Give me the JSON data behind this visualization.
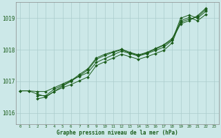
{
  "bg_color": "#cce8e8",
  "grid_color": "#aacccc",
  "line_color": "#1a5c1a",
  "marker_color": "#1a5c1a",
  "xlabel": "Graphe pression niveau de la mer (hPa)",
  "xlabel_color": "#1a5c1a",
  "ylabel_color": "#1a5c1a",
  "yticks": [
    1016,
    1017,
    1018,
    1019
  ],
  "xticks": [
    0,
    1,
    2,
    3,
    4,
    5,
    6,
    7,
    8,
    9,
    10,
    11,
    12,
    13,
    14,
    15,
    16,
    17,
    18,
    19,
    20,
    21,
    22,
    23
  ],
  "xlim": [
    -0.5,
    23.5
  ],
  "ylim": [
    1015.65,
    1019.5
  ],
  "series": [
    {
      "x": [
        0,
        1,
        2,
        3,
        4,
        5,
        6,
        7,
        8,
        9,
        10,
        11,
        12,
        13,
        14,
        15,
        16,
        17,
        18,
        19,
        20,
        21,
        22
      ],
      "y": [
        1016.7,
        1016.7,
        1016.68,
        1016.68,
        1016.8,
        1016.92,
        1017.04,
        1017.16,
        1017.28,
        1017.6,
        1017.72,
        1017.84,
        1017.96,
        1017.88,
        1017.8,
        1017.88,
        1017.98,
        1018.08,
        1018.3,
        1019.0,
        1019.1,
        1019.0,
        1019.22
      ]
    },
    {
      "x": [
        0,
        1,
        2,
        3,
        4,
        5,
        6,
        7,
        8,
        9,
        10,
        11,
        12,
        13,
        14,
        15,
        16,
        17,
        18,
        19,
        20,
        21,
        22
      ],
      "y": [
        1016.7,
        1016.7,
        1016.6,
        1016.52,
        1016.68,
        1016.8,
        1016.9,
        1017.02,
        1017.14,
        1017.5,
        1017.62,
        1017.74,
        1017.86,
        1017.78,
        1017.7,
        1017.78,
        1017.88,
        1017.98,
        1018.22,
        1018.92,
        1019.02,
        1018.92,
        1019.12
      ]
    },
    {
      "x": [
        2,
        3,
        4,
        5,
        6,
        7,
        8,
        9,
        10,
        11,
        12,
        13,
        14,
        15,
        16,
        17,
        18,
        19,
        20,
        21,
        22
      ],
      "y": [
        1016.45,
        1016.5,
        1016.68,
        1016.85,
        1017.0,
        1017.18,
        1017.36,
        1017.7,
        1017.82,
        1017.92,
        1018.0,
        1017.9,
        1017.82,
        1017.9,
        1018.02,
        1018.14,
        1018.32,
        1018.82,
        1018.92,
        1019.08,
        1019.32
      ]
    },
    {
      "x": [
        2,
        3,
        4,
        5,
        6,
        7,
        8,
        9,
        10,
        11,
        12,
        13,
        14,
        15,
        16,
        17,
        18,
        19,
        20,
        21,
        22
      ],
      "y": [
        1016.55,
        1016.55,
        1016.75,
        1016.88,
        1017.02,
        1017.22,
        1017.4,
        1017.74,
        1017.86,
        1017.94,
        1018.02,
        1017.92,
        1017.84,
        1017.92,
        1018.04,
        1018.16,
        1018.36,
        1018.87,
        1018.97,
        1019.04,
        1019.28
      ]
    }
  ]
}
